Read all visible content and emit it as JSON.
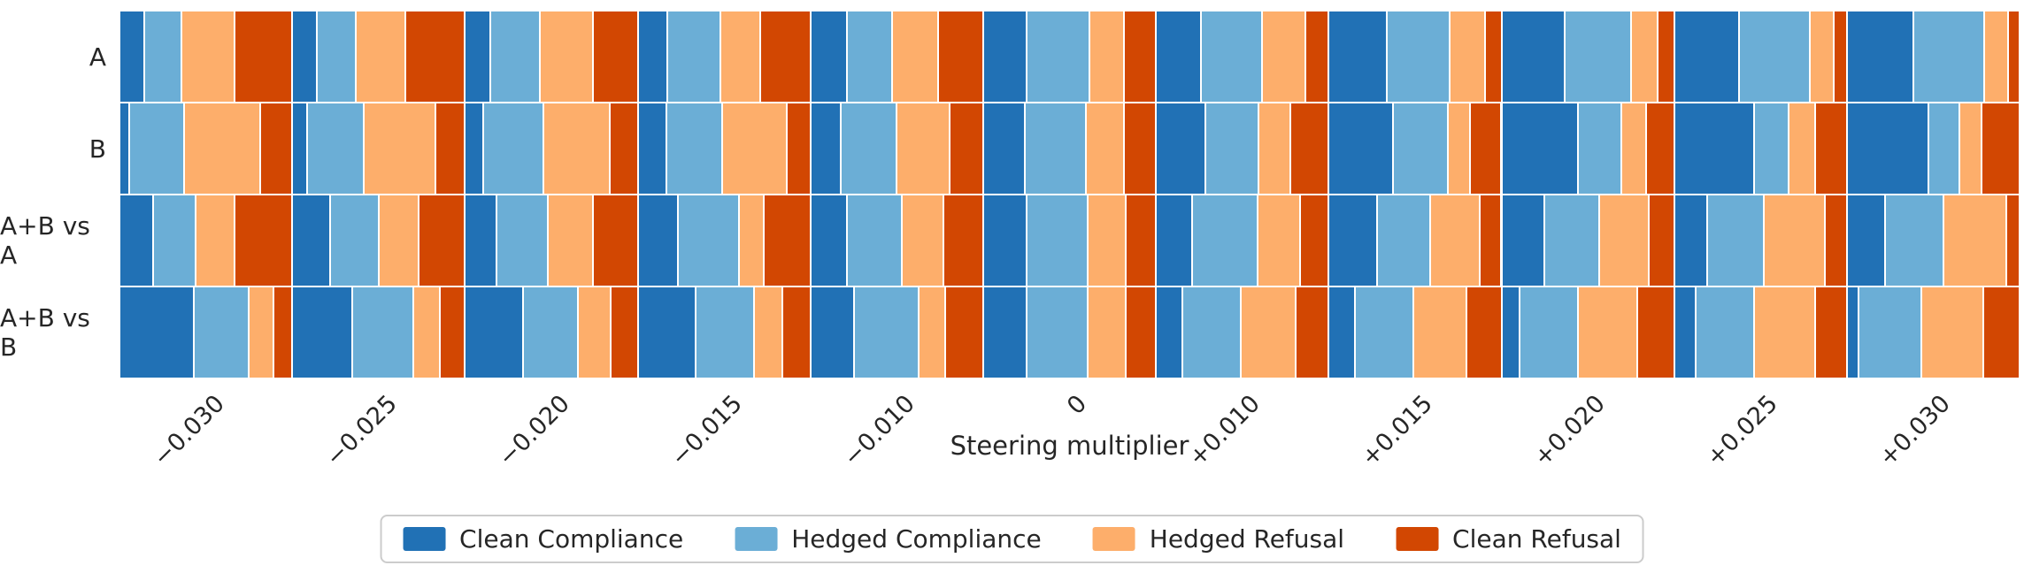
{
  "chart_data": {
    "type": "bar",
    "variant": "mosaic-grid: each row x steering-multiplier cell is a horizontal 100%-stacked proportion bar",
    "xlabel": "Steering multiplier",
    "legend_position": "bottom-center",
    "grid": false,
    "rows": [
      "A",
      "B",
      "A+B vs A",
      "A+B vs B"
    ],
    "categories": [
      "−0.030",
      "−0.025",
      "−0.020",
      "−0.015",
      "−0.010",
      "0",
      "+0.010",
      "+0.015",
      "+0.020",
      "+0.025",
      "+0.030"
    ],
    "series": [
      {
        "name": "Clean Compliance",
        "color": "#2171b5"
      },
      {
        "name": "Hedged Compliance",
        "color": "#6baed6"
      },
      {
        "name": "Hedged Refusal",
        "color": "#fdae6b"
      },
      {
        "name": "Clean Refusal",
        "color": "#d24702"
      }
    ],
    "values_note": "values[row][category] = fractions of [Clean Compliance, Hedged Compliance, Hedged Refusal, Clean Refusal], summing to 1",
    "values": [
      [
        [
          0.14,
          0.21,
          0.31,
          0.34
        ],
        [
          0.14,
          0.22,
          0.29,
          0.35
        ],
        [
          0.14,
          0.29,
          0.31,
          0.26
        ],
        [
          0.17,
          0.31,
          0.23,
          0.29
        ],
        [
          0.21,
          0.26,
          0.27,
          0.26
        ],
        [
          0.25,
          0.37,
          0.2,
          0.18
        ],
        [
          0.26,
          0.36,
          0.25,
          0.13
        ],
        [
          0.34,
          0.37,
          0.2,
          0.09
        ],
        [
          0.37,
          0.39,
          0.15,
          0.09
        ],
        [
          0.38,
          0.42,
          0.13,
          0.07
        ],
        [
          0.39,
          0.42,
          0.13,
          0.06
        ]
      ],
      [
        [
          0.05,
          0.32,
          0.45,
          0.18
        ],
        [
          0.08,
          0.33,
          0.42,
          0.17
        ],
        [
          0.1,
          0.35,
          0.39,
          0.16
        ],
        [
          0.16,
          0.33,
          0.38,
          0.13
        ],
        [
          0.17,
          0.33,
          0.31,
          0.19
        ],
        [
          0.24,
          0.36,
          0.22,
          0.18
        ],
        [
          0.29,
          0.31,
          0.18,
          0.22
        ],
        [
          0.38,
          0.32,
          0.12,
          0.18
        ],
        [
          0.45,
          0.25,
          0.14,
          0.16
        ],
        [
          0.47,
          0.2,
          0.15,
          0.18
        ],
        [
          0.48,
          0.18,
          0.12,
          0.22
        ]
      ],
      [
        [
          0.19,
          0.25,
          0.22,
          0.34
        ],
        [
          0.22,
          0.28,
          0.23,
          0.27
        ],
        [
          0.18,
          0.3,
          0.26,
          0.26
        ],
        [
          0.23,
          0.36,
          0.14,
          0.27
        ],
        [
          0.21,
          0.32,
          0.24,
          0.23
        ],
        [
          0.25,
          0.36,
          0.22,
          0.17
        ],
        [
          0.21,
          0.38,
          0.25,
          0.16
        ],
        [
          0.28,
          0.31,
          0.29,
          0.12
        ],
        [
          0.25,
          0.32,
          0.29,
          0.14
        ],
        [
          0.19,
          0.33,
          0.36,
          0.12
        ],
        [
          0.22,
          0.34,
          0.37,
          0.07
        ]
      ],
      [
        [
          0.44,
          0.32,
          0.14,
          0.1
        ],
        [
          0.35,
          0.36,
          0.15,
          0.14
        ],
        [
          0.34,
          0.32,
          0.19,
          0.15
        ],
        [
          0.34,
          0.34,
          0.16,
          0.16
        ],
        [
          0.25,
          0.38,
          0.15,
          0.22
        ],
        [
          0.25,
          0.36,
          0.22,
          0.17
        ],
        [
          0.15,
          0.34,
          0.32,
          0.19
        ],
        [
          0.15,
          0.34,
          0.31,
          0.2
        ],
        [
          0.1,
          0.34,
          0.35,
          0.21
        ],
        [
          0.12,
          0.34,
          0.36,
          0.18
        ],
        [
          0.06,
          0.37,
          0.36,
          0.21
        ]
      ]
    ]
  }
}
